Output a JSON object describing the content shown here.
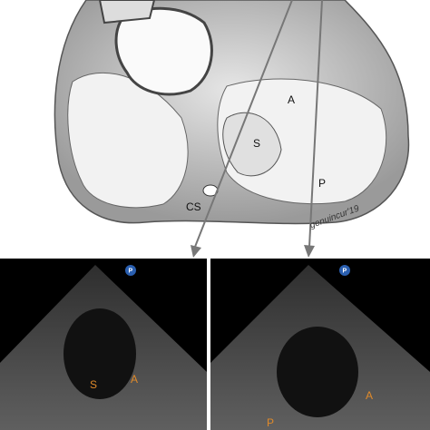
{
  "illustration": {
    "labels": [
      "A",
      "S",
      "P",
      "CS"
    ],
    "signature": "genuincur'19"
  },
  "echo_left": {
    "icon": "P",
    "labels": [
      "S",
      "A"
    ]
  },
  "echo_right": {
    "icon": "P",
    "labels": [
      "A",
      "P"
    ]
  }
}
